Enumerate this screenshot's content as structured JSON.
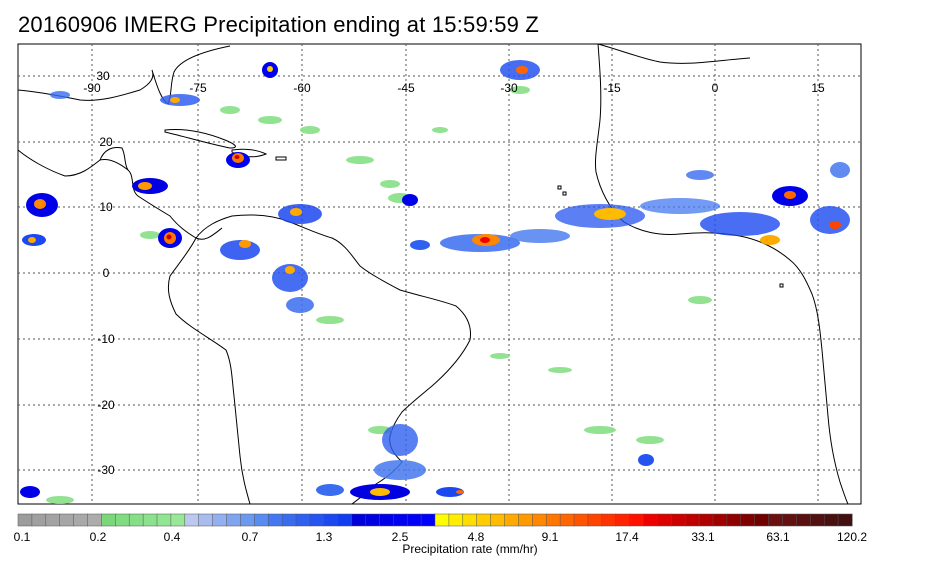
{
  "title": "20160906 IMERG Precipitation ending at 15:59:59 Z",
  "map": {
    "lon_labels": [
      "-90",
      "-75",
      "-60",
      "-45",
      "-30",
      "-15",
      "0",
      "15"
    ],
    "lat_labels": [
      "30",
      "20",
      "10",
      "0",
      "-10",
      "-20",
      "-30"
    ],
    "grid_style": "dotted",
    "coastline_color": "#000000"
  },
  "colorbar": {
    "caption": "Precipitation rate (mm/hr)",
    "tick_labels": [
      "0.1",
      "0.2",
      "0.4",
      "0.7",
      "1.3",
      "2.5",
      "4.8",
      "9.1",
      "17.4",
      "33.1",
      "63.1",
      "120.2"
    ],
    "colors": [
      "#9c9c9c",
      "#a0a0a0",
      "#a3a3a3",
      "#a6a6a6",
      "#a9a9a9",
      "#acacac",
      "#7ad87a",
      "#80dc80",
      "#86df86",
      "#8ce28c",
      "#92e592",
      "#98e898",
      "#bcc8f0",
      "#a8bcf0",
      "#94b0f0",
      "#80a4f0",
      "#6c98f0",
      "#588cf0",
      "#4478f0",
      "#3a6cf0",
      "#3060f0",
      "#2654f0",
      "#1c48f0",
      "#123cf0",
      "#0000d8",
      "#0000e0",
      "#0000e8",
      "#0000f0",
      "#0000f8",
      "#0000ff",
      "#ffff00",
      "#ffee00",
      "#ffdd00",
      "#ffcc00",
      "#ffbb00",
      "#ffaa00",
      "#ff9900",
      "#ff8800",
      "#ff7700",
      "#ff6600",
      "#ff5500",
      "#ff4400",
      "#ff3300",
      "#ff2200",
      "#ff1100",
      "#ee0000",
      "#dd0000",
      "#cc0000",
      "#c00000",
      "#b00000",
      "#a00000",
      "#900000",
      "#800000",
      "#700000",
      "#6a1010",
      "#621010",
      "#5a1010",
      "#521010",
      "#4a1010",
      "#421010"
    ]
  }
}
